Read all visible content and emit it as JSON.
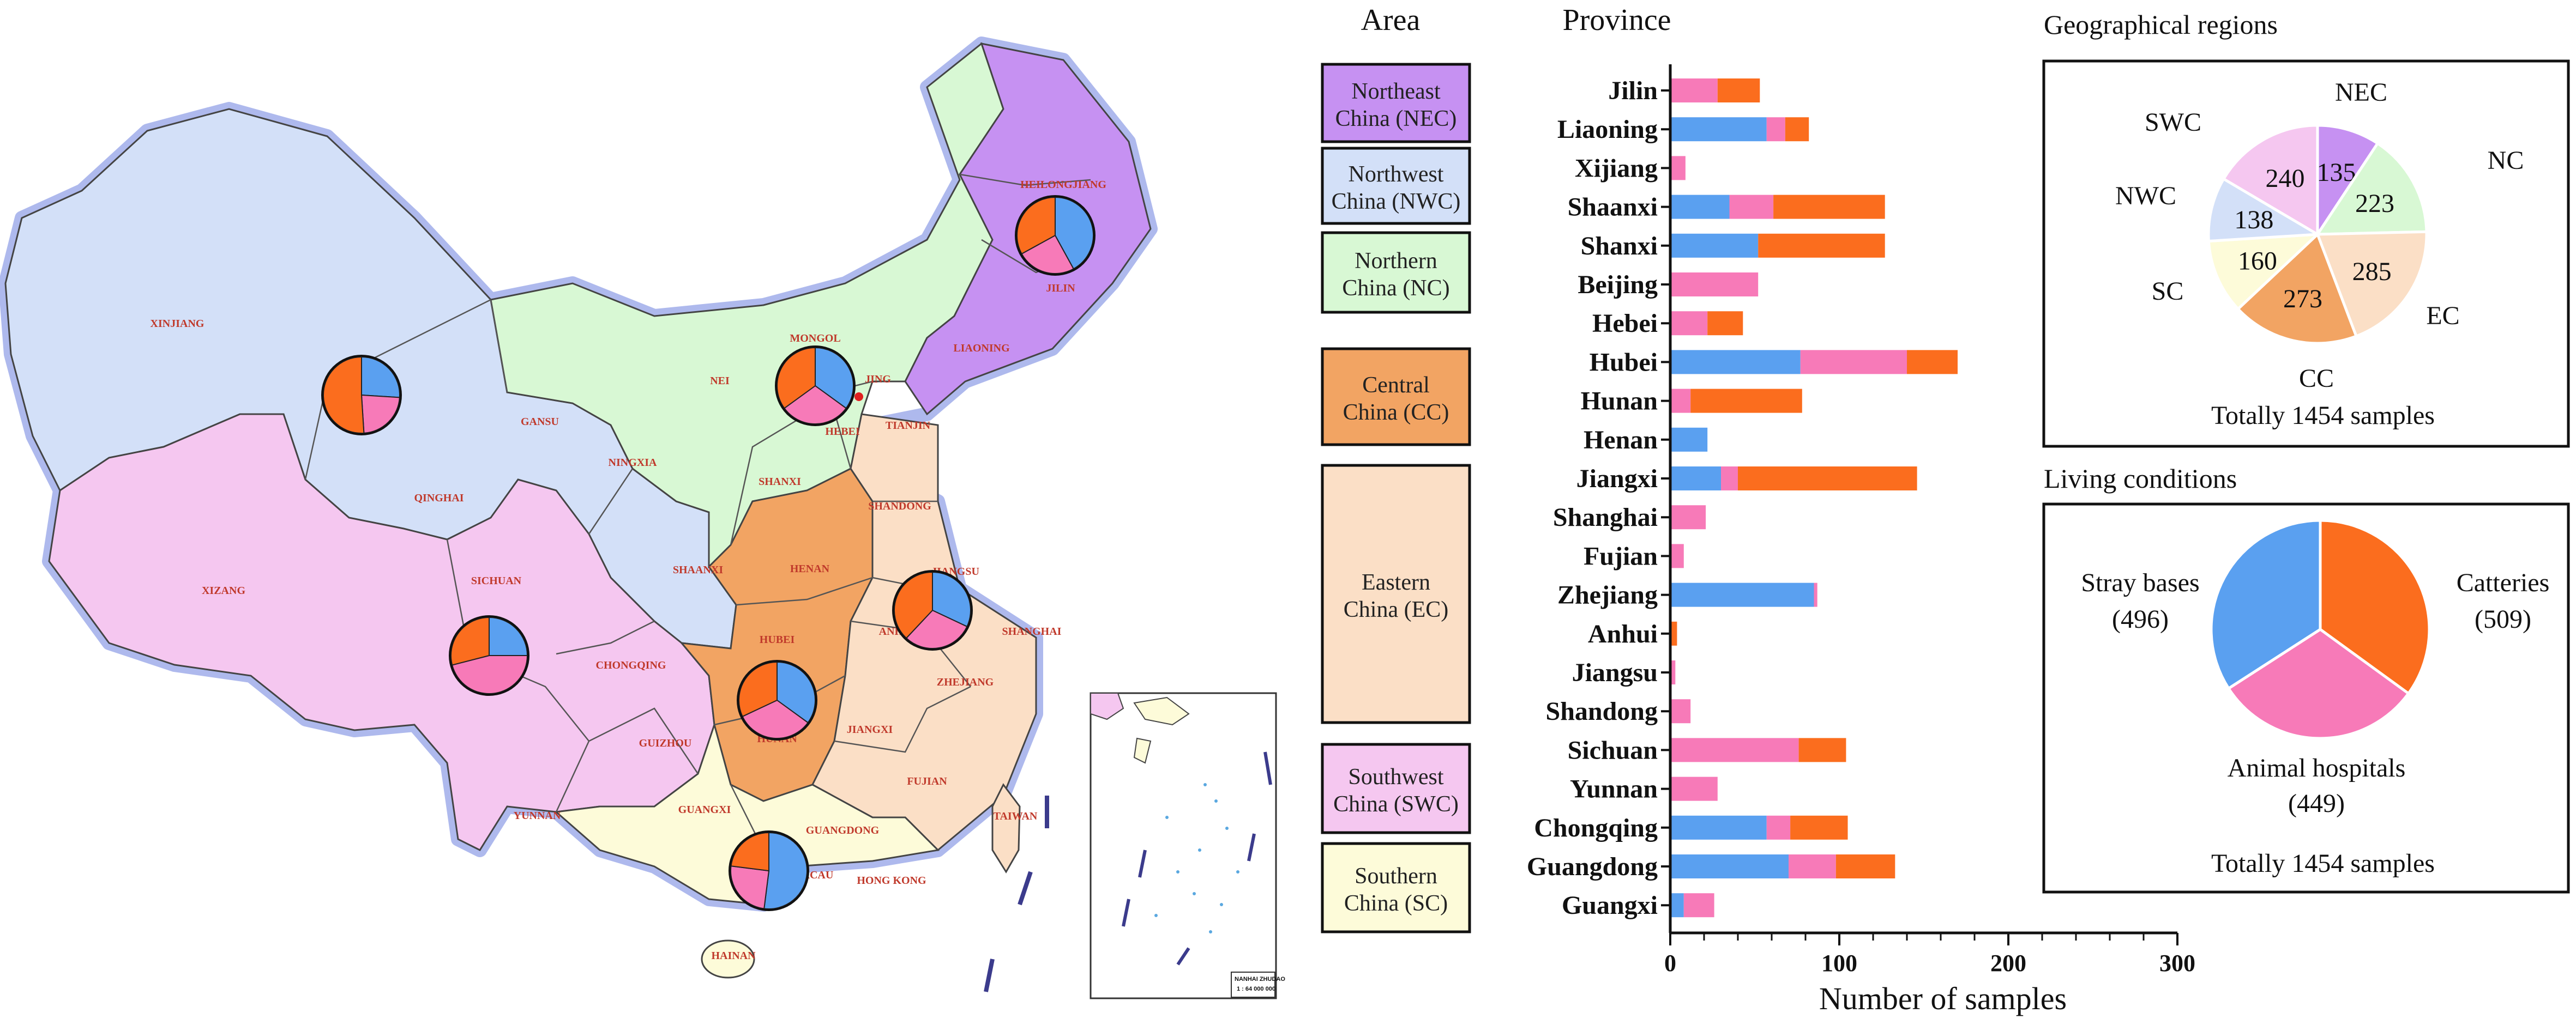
{
  "colors": {
    "strayBases": "#5aa0f0",
    "animalHospitals": "#f77ab8",
    "catteries": "#fb6d1e",
    "NEC": "#c691f2",
    "NWC": "#d3e0f8",
    "NC": "#d8f8d4",
    "CC": "#f2a463",
    "EC": "#fbdfc6",
    "SWC": "#f5c7f0",
    "SC": "#fdfbd9",
    "labelRed": "#c0392b"
  },
  "map": {
    "labels": [
      "XINJIANG",
      "QINGHAI",
      "XIZANG",
      "GANSU",
      "NINGXIA",
      "NEI",
      "MONGOL",
      "HEILONGJIANG",
      "JILIN",
      "LIAONING",
      "HEBEI",
      "TIANJIN",
      "SHANXI",
      "SHAANXI",
      "SHANDONG",
      "HENAN",
      "SICHUAN",
      "CHONGQING",
      "HUBEI",
      "ANHUI",
      "SHANGHAI",
      "ZHEJIANG",
      "GUIZHOU",
      "HUNAN",
      "JIANGXI",
      "FUJIAN",
      "YUNNAN",
      "GUANGXI",
      "GUANGDONG",
      "HONG KONG",
      "MACAU",
      "HAINAN",
      "TAIWAN",
      "JING",
      "JIANGSU"
    ],
    "inset": {
      "line1": "NANHAI ZHUDAO",
      "line2": "1 : 64 000 000"
    }
  },
  "area": {
    "title": "Area",
    "boxes": [
      {
        "line1": "Northeast",
        "line2": "China (NEC)",
        "key": "NEC"
      },
      {
        "line1": "Northwest",
        "line2": "China (NWC)",
        "key": "NWC"
      },
      {
        "line1": "Northern",
        "line2": "China (NC)",
        "key": "NC"
      },
      {
        "line1": "Central",
        "line2": "China (CC)",
        "key": "CC"
      },
      {
        "line1": "Eastern",
        "line2": "China (EC)",
        "key": "EC"
      },
      {
        "line1": "Southwest",
        "line2": "China (SWC)",
        "key": "SWC"
      },
      {
        "line1": "Southern",
        "line2": "China (SC)",
        "key": "SC"
      }
    ]
  },
  "chart_data": [
    {
      "type": "bar",
      "orientation": "horizontal",
      "stacked": true,
      "title": "Province",
      "xlabel": "Number of samples",
      "xlim": [
        0,
        300
      ],
      "xticks": [
        0,
        100,
        200,
        300
      ],
      "categories": [
        "Jilin",
        "Liaoning",
        "Xijiang",
        "Shaanxi",
        "Shanxi",
        "Beijing",
        "Hebei",
        "Hubei",
        "Hunan",
        "Henan",
        "Jiangxi",
        "Shanghai",
        "Fujian",
        "Zhejiang",
        "Anhui",
        "Jiangsu",
        "Shandong",
        "Sichuan",
        "Yunnan",
        "Chongqing",
        "Guangdong",
        "Guangxi"
      ],
      "series": [
        {
          "color": "#5aa0f0",
          "values": [
            0,
            57,
            0,
            35,
            52,
            0,
            0,
            77,
            0,
            22,
            30,
            0,
            0,
            85,
            0,
            0,
            0,
            0,
            0,
            57,
            70,
            8
          ]
        },
        {
          "color": "#f77ab8",
          "values": [
            28,
            11,
            9,
            26,
            0,
            52,
            22,
            63,
            12,
            0,
            10,
            21,
            8,
            2,
            0,
            3,
            12,
            76,
            28,
            14,
            28,
            18
          ]
        },
        {
          "color": "#fb6d1e",
          "values": [
            25,
            14,
            0,
            66,
            75,
            0,
            21,
            30,
            66,
            0,
            106,
            0,
            0,
            0,
            4,
            0,
            0,
            28,
            0,
            34,
            35,
            0
          ]
        }
      ]
    },
    {
      "type": "pie",
      "title": "Geographical regions",
      "caption": "Totally 1454 samples",
      "slices": [
        {
          "label": "NEC",
          "value": 135,
          "key": "NEC"
        },
        {
          "label": "NC",
          "value": 223,
          "key": "NC"
        },
        {
          "label": "EC",
          "value": 285,
          "key": "EC"
        },
        {
          "label": "CC",
          "value": 273,
          "key": "CC"
        },
        {
          "label": "SC",
          "value": 160,
          "key": "SC"
        },
        {
          "label": "NWC",
          "value": 138,
          "key": "NWC"
        },
        {
          "label": "SWC",
          "value": 240,
          "key": "SWC"
        }
      ]
    },
    {
      "type": "pie",
      "title": "Living conditions",
      "caption": "Totally 1454 samples",
      "slices": [
        {
          "label": "Catteries",
          "value": 509,
          "display": "(509)",
          "key": "catteries"
        },
        {
          "label": "Animal hospitals",
          "value": 449,
          "display": "(449)",
          "key": "animalHospitals"
        },
        {
          "label": "Stray bases",
          "value": 496,
          "display": "(496)",
          "key": "strayBases"
        }
      ]
    }
  ]
}
